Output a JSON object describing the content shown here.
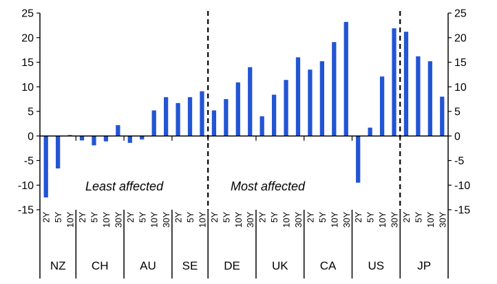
{
  "chart_data": {
    "type": "bar",
    "bar_color": "#2255d4",
    "ylim": [
      -15,
      25
    ],
    "yticks": [
      -15,
      -10,
      -5,
      0,
      5,
      10,
      15,
      20,
      25
    ],
    "groups": [
      {
        "name": "NZ",
        "categories": [
          "2Y",
          "5Y",
          "10Y"
        ],
        "values": [
          -12.5,
          -6.6,
          0.2
        ]
      },
      {
        "name": "CH",
        "categories": [
          "2Y",
          "5Y",
          "10Y",
          "30Y"
        ],
        "values": [
          -0.9,
          -1.9,
          -1.1,
          2.2
        ]
      },
      {
        "name": "AU",
        "categories": [
          "2Y",
          "5Y",
          "10Y",
          "30Y"
        ],
        "values": [
          -1.4,
          -0.7,
          5.2,
          7.9
        ]
      },
      {
        "name": "SE",
        "categories": [
          "2Y",
          "5Y",
          "10Y"
        ],
        "values": [
          6.7,
          7.9,
          9.1
        ]
      },
      {
        "name": "DE",
        "categories": [
          "2Y",
          "5Y",
          "10Y",
          "30Y"
        ],
        "values": [
          5.2,
          7.5,
          10.9,
          14.0
        ]
      },
      {
        "name": "UK",
        "categories": [
          "2Y",
          "5Y",
          "10Y",
          "30Y"
        ],
        "values": [
          4.0,
          8.4,
          11.4,
          16.0
        ]
      },
      {
        "name": "CA",
        "categories": [
          "2Y",
          "5Y",
          "10Y",
          "30Y"
        ],
        "values": [
          13.5,
          15.2,
          19.1,
          23.2
        ]
      },
      {
        "name": "US",
        "categories": [
          "2Y",
          "5Y",
          "10Y",
          "30Y"
        ],
        "values": [
          -9.5,
          1.7,
          12.1,
          21.9
        ]
      },
      {
        "name": "JP",
        "categories": [
          "2Y",
          "5Y",
          "10Y",
          "30Y"
        ],
        "values": [
          21.2,
          16.2,
          15.2,
          8.0
        ]
      }
    ],
    "annotations": [
      "Least affected",
      "Most affected"
    ],
    "dividers_after_groups": [
      "SE",
      "US"
    ]
  }
}
